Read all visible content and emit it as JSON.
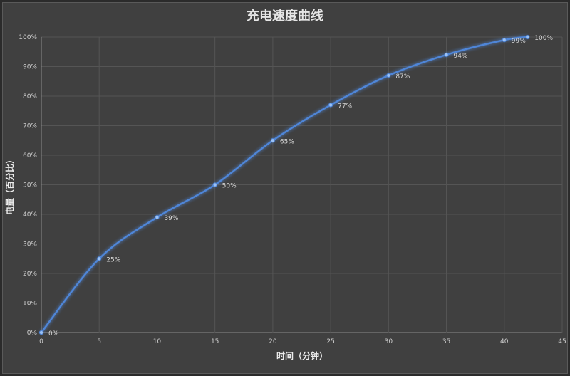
{
  "chart_data": {
    "type": "line",
    "title": "充电速度曲线",
    "xlabel": "时间（分钟）",
    "ylabel": "电量（百分比）",
    "xlim": [
      0,
      45
    ],
    "ylim": [
      0,
      100
    ],
    "x_ticks": [
      "0",
      "5",
      "10",
      "15",
      "20",
      "25",
      "30",
      "35",
      "40",
      "45"
    ],
    "y_ticks": [
      "0%",
      "10%",
      "20%",
      "30%",
      "40%",
      "50%",
      "60%",
      "70%",
      "80%",
      "90%",
      "100%"
    ],
    "grid": true,
    "line_color": "#4f86d8",
    "series": [
      {
        "x": [
          0,
          5,
          10,
          15,
          20,
          25,
          30,
          35,
          40,
          42
        ],
        "values": [
          0,
          25,
          39,
          50,
          65,
          77,
          87,
          94,
          99,
          100
        ],
        "labels": [
          "0%",
          "25%",
          "39%",
          "50%",
          "65%",
          "77%",
          "87%",
          "94%",
          "99%",
          "100%"
        ]
      }
    ]
  }
}
